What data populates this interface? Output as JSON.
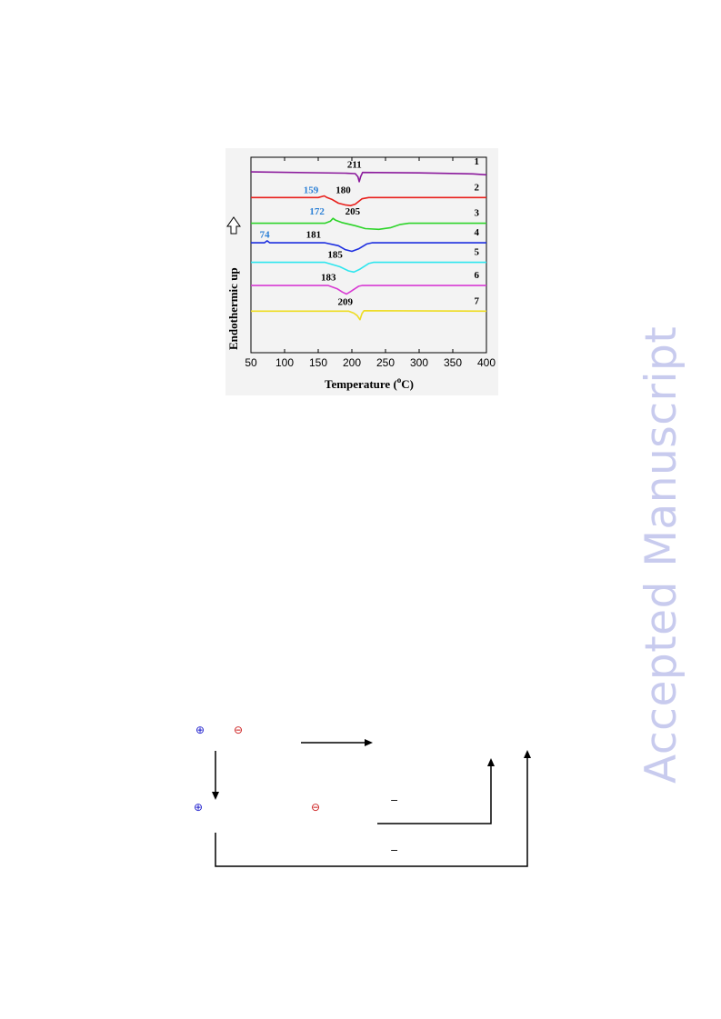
{
  "chart_data": {
    "type": "line",
    "title": "",
    "xlabel": "Temperature (°C)",
    "xlabel_main": "Temperature (",
    "xlabel_sup": "o",
    "xlabel_tail": "C)",
    "ylabel": "Endothermic up",
    "xlim": [
      50,
      400
    ],
    "xticks": [
      50,
      100,
      150,
      200,
      250,
      300,
      350,
      400
    ],
    "ylim": [
      0,
      8
    ],
    "grid": false,
    "legend": "none",
    "series": [
      {
        "curve": "1",
        "color": "#8b1a9c",
        "baseline": 7.4,
        "points": [
          [
            50,
            7.4
          ],
          [
            190,
            7.35
          ],
          [
            205,
            7.33
          ],
          [
            209,
            7.2
          ],
          [
            211,
            7.0
          ],
          [
            213,
            7.2
          ],
          [
            216,
            7.38
          ],
          [
            300,
            7.36
          ],
          [
            380,
            7.32
          ],
          [
            400,
            7.28
          ]
        ]
      },
      {
        "curve": "2",
        "color": "#e8201c",
        "baseline": 6.35,
        "points": [
          [
            50,
            6.35
          ],
          [
            150,
            6.35
          ],
          [
            159,
            6.42
          ],
          [
            163,
            6.35
          ],
          [
            170,
            6.28
          ],
          [
            180,
            6.12
          ],
          [
            190,
            6.05
          ],
          [
            198,
            6.02
          ],
          [
            205,
            6.08
          ],
          [
            215,
            6.3
          ],
          [
            225,
            6.35
          ],
          [
            400,
            6.35
          ]
        ]
      },
      {
        "curve": "3",
        "color": "#2ed42a",
        "baseline": 5.3,
        "points": [
          [
            50,
            5.3
          ],
          [
            160,
            5.3
          ],
          [
            168,
            5.38
          ],
          [
            172,
            5.5
          ],
          [
            176,
            5.42
          ],
          [
            185,
            5.33
          ],
          [
            205,
            5.2
          ],
          [
            220,
            5.08
          ],
          [
            240,
            5.05
          ],
          [
            258,
            5.12
          ],
          [
            272,
            5.25
          ],
          [
            285,
            5.3
          ],
          [
            400,
            5.3
          ]
        ]
      },
      {
        "curve": "4",
        "color": "#1c2ee0",
        "baseline": 4.5,
        "points": [
          [
            50,
            4.5
          ],
          [
            70,
            4.5
          ],
          [
            74,
            4.58
          ],
          [
            78,
            4.5
          ],
          [
            160,
            4.5
          ],
          [
            180,
            4.38
          ],
          [
            190,
            4.22
          ],
          [
            200,
            4.15
          ],
          [
            210,
            4.25
          ],
          [
            222,
            4.45
          ],
          [
            230,
            4.5
          ],
          [
            400,
            4.5
          ]
        ]
      },
      {
        "curve": "5",
        "color": "#2ee6ee",
        "baseline": 3.7,
        "points": [
          [
            50,
            3.7
          ],
          [
            160,
            3.7
          ],
          [
            182,
            3.52
          ],
          [
            195,
            3.35
          ],
          [
            203,
            3.3
          ],
          [
            212,
            3.42
          ],
          [
            225,
            3.65
          ],
          [
            232,
            3.7
          ],
          [
            400,
            3.7
          ]
        ]
      },
      {
        "curve": "6",
        "color": "#d83bd3",
        "baseline": 2.75,
        "points": [
          [
            50,
            2.75
          ],
          [
            165,
            2.75
          ],
          [
            178,
            2.62
          ],
          [
            186,
            2.48
          ],
          [
            192,
            2.4
          ],
          [
            198,
            2.5
          ],
          [
            210,
            2.72
          ],
          [
            215,
            2.75
          ],
          [
            400,
            2.75
          ]
        ]
      },
      {
        "curve": "7",
        "color": "#eedc22",
        "baseline": 1.7,
        "points": [
          [
            50,
            1.7
          ],
          [
            195,
            1.7
          ],
          [
            203,
            1.62
          ],
          [
            208,
            1.52
          ],
          [
            212,
            1.35
          ],
          [
            215,
            1.6
          ],
          [
            218,
            1.72
          ],
          [
            400,
            1.7
          ]
        ]
      }
    ],
    "curve_labels": [
      "1",
      "2",
      "3",
      "4",
      "5",
      "6",
      "7"
    ],
    "annotations": [
      {
        "text": "211",
        "x": 193,
        "y": 7.58,
        "color": "#000000"
      },
      {
        "text": "159",
        "x": 128,
        "y": 6.53,
        "color": "#2a7fd6"
      },
      {
        "text": "180",
        "x": 176,
        "y": 6.53,
        "color": "#000000"
      },
      {
        "text": "172",
        "x": 137,
        "y": 5.65,
        "color": "#2a7fd6"
      },
      {
        "text": "205",
        "x": 190,
        "y": 5.65,
        "color": "#000000"
      },
      {
        "text": "74",
        "x": 63,
        "y": 4.7,
        "color": "#2a7fd6"
      },
      {
        "text": "181",
        "x": 132,
        "y": 4.7,
        "color": "#000000"
      },
      {
        "text": "185",
        "x": 164,
        "y": 3.88,
        "color": "#000000"
      },
      {
        "text": "183",
        "x": 154,
        "y": 2.95,
        "color": "#000000"
      },
      {
        "text": "209",
        "x": 179,
        "y": 1.96,
        "color": "#000000"
      }
    ]
  },
  "watermark": {
    "text": "Accepted Manuscript",
    "color": "#c8cbee"
  },
  "scheme": {
    "plus_symbol": "⊕",
    "minus_symbol": "⊖",
    "minus_sign": "−",
    "plus_color": "#1a1acc",
    "minus_color": "#cc1a1a"
  }
}
